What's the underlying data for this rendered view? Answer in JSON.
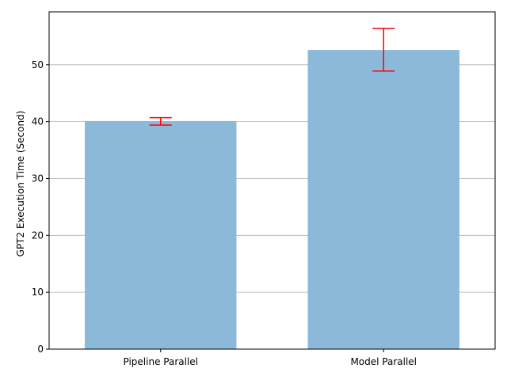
{
  "chart_data": {
    "type": "bar",
    "categories": [
      "Pipeline Parallel",
      "Model Parallel"
    ],
    "values": [
      40.1,
      52.6
    ],
    "errors": [
      {
        "low": 39.4,
        "high": 40.7
      },
      {
        "low": 48.9,
        "high": 56.4
      }
    ],
    "title": "",
    "xlabel": "",
    "ylabel": "GPT2 Execution Time (Second)",
    "ylim": [
      0,
      59.3
    ],
    "yticks": [
      0,
      10,
      20,
      30,
      40,
      50
    ],
    "grid": {
      "y": true,
      "x": false
    },
    "colors": {
      "bar": "#8cb9d9",
      "error": "#ff0000",
      "grid": "#b0b0b0",
      "axis": "#000000"
    }
  }
}
